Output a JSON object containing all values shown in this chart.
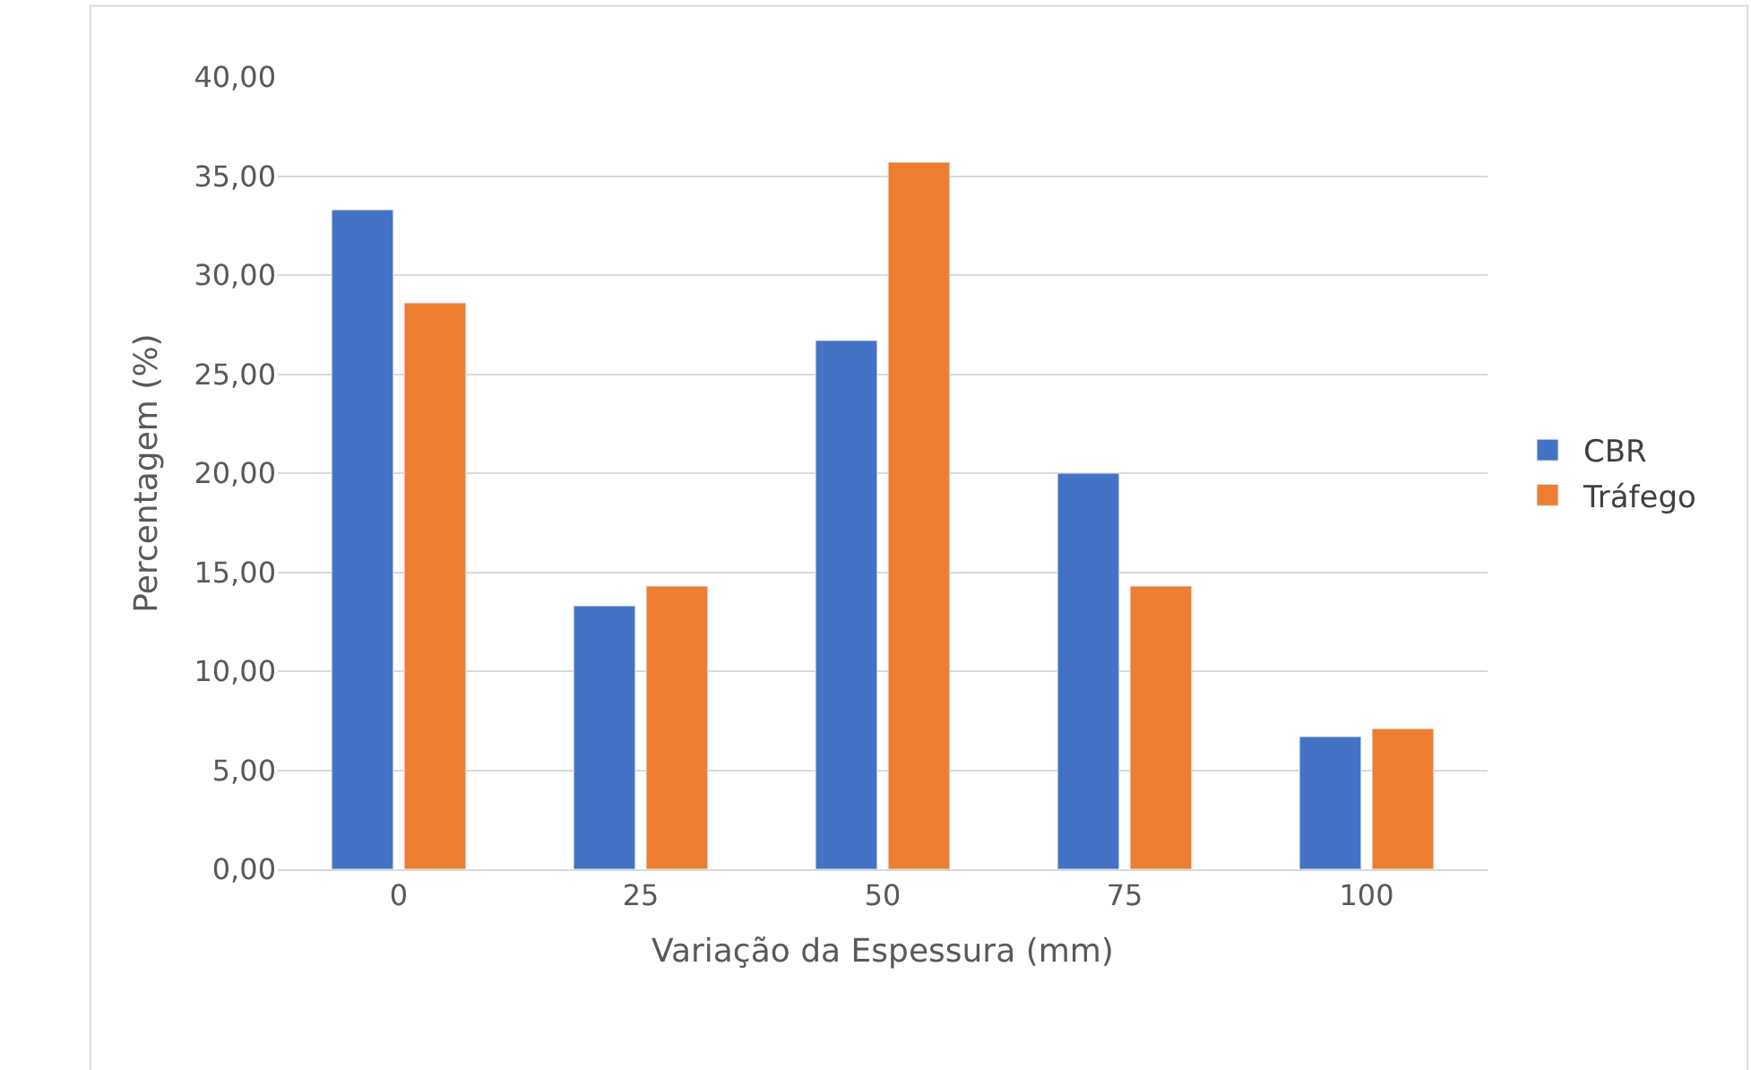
{
  "chart_data": {
    "type": "bar",
    "xlabel": "Variação da Espessura (mm)",
    "ylabel": "Percentagem (%)",
    "categories": [
      "0",
      "25",
      "50",
      "75",
      "100"
    ],
    "series": [
      {
        "name": "CBR",
        "color": "#4472c4",
        "values": [
          33.3,
          13.3,
          26.7,
          20.0,
          6.7
        ]
      },
      {
        "name": "Tráfego",
        "color": "#ed7d31",
        "values": [
          28.6,
          14.3,
          35.7,
          14.3,
          7.1
        ]
      }
    ],
    "ylim": [
      0,
      40
    ],
    "yticks": [
      {
        "value": 0,
        "label": "0,00"
      },
      {
        "value": 5,
        "label": "5,00"
      },
      {
        "value": 10,
        "label": "10,00"
      },
      {
        "value": 15,
        "label": "15,00"
      },
      {
        "value": 20,
        "label": "20,00"
      },
      {
        "value": 25,
        "label": "25,00"
      },
      {
        "value": 30,
        "label": "30,00"
      },
      {
        "value": 35,
        "label": "35,00"
      },
      {
        "value": 40,
        "label": "40,00"
      }
    ],
    "grid": "y",
    "legend": "right"
  }
}
